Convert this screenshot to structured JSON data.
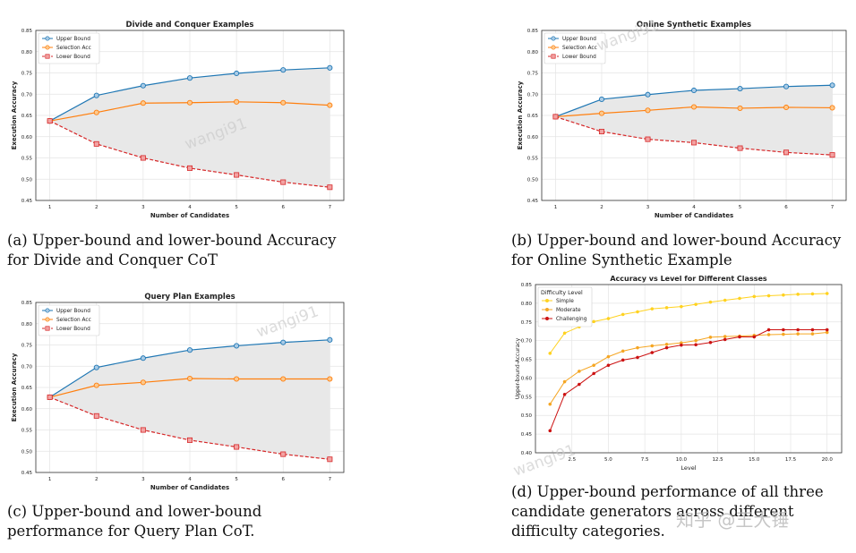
{
  "watermark": "wangi91",
  "brand_watermark": "知乎 @王大锤",
  "chart_data": [
    {
      "type": "line",
      "title": "Divide and Conquer Examples",
      "xlabel": "Number of Candidates",
      "ylabel": "Execution Accuracy",
      "x": [
        1,
        2,
        3,
        4,
        5,
        6,
        7
      ],
      "xticks": [
        "1",
        "2",
        "3",
        "4",
        "5",
        "6",
        "7"
      ],
      "ylim": [
        0.45,
        0.85
      ],
      "yticks": [
        "0.45",
        "0.50",
        "0.55",
        "0.60",
        "0.65",
        "0.70",
        "0.75",
        "0.80",
        "0.85"
      ],
      "grid": true,
      "legend": "top-left",
      "shaded_between": [
        "Upper Bound",
        "Lower Bound"
      ],
      "series": [
        {
          "name": "Upper Bound",
          "values": [
            0.637,
            0.697,
            0.72,
            0.738,
            0.749,
            0.757,
            0.762
          ],
          "color": "#1f77b4",
          "style": "solid",
          "marker": "circle"
        },
        {
          "name": "Selection Acc",
          "values": [
            0.637,
            0.657,
            0.679,
            0.68,
            0.682,
            0.68,
            0.674
          ],
          "color": "#ff7f0e",
          "style": "solid",
          "marker": "circle"
        },
        {
          "name": "Lower Bound",
          "values": [
            0.637,
            0.583,
            0.55,
            0.526,
            0.51,
            0.493,
            0.481
          ],
          "color": "#d62728",
          "style": "dashed",
          "marker": "square"
        }
      ],
      "caption": "(a) Upper-bound and lower-bound Accuracy for Divide and Conquer CoT"
    },
    {
      "type": "line",
      "title": "Online Synthetic Examples",
      "xlabel": "Number of Candidates",
      "ylabel": "Execution Accuracy",
      "x": [
        1,
        2,
        3,
        4,
        5,
        6,
        7
      ],
      "xticks": [
        "1",
        "2",
        "3",
        "4",
        "5",
        "6",
        "7"
      ],
      "ylim": [
        0.45,
        0.85
      ],
      "yticks": [
        "0.45",
        "0.50",
        "0.55",
        "0.60",
        "0.65",
        "0.70",
        "0.75",
        "0.80",
        "0.85"
      ],
      "grid": true,
      "legend": "top-left",
      "shaded_between": [
        "Upper Bound",
        "Lower Bound"
      ],
      "series": [
        {
          "name": "Upper Bound",
          "values": [
            0.647,
            0.688,
            0.699,
            0.709,
            0.713,
            0.718,
            0.721
          ],
          "color": "#1f77b4",
          "style": "solid",
          "marker": "circle"
        },
        {
          "name": "Selection Acc",
          "values": [
            0.647,
            0.655,
            0.662,
            0.67,
            0.667,
            0.669,
            0.668
          ],
          "color": "#ff7f0e",
          "style": "solid",
          "marker": "circle"
        },
        {
          "name": "Lower Bound",
          "values": [
            0.647,
            0.612,
            0.594,
            0.586,
            0.573,
            0.563,
            0.557
          ],
          "color": "#d62728",
          "style": "dashed",
          "marker": "square"
        }
      ],
      "caption": "(b) Upper-bound and lower-bound Accuracy for Online Synthetic Example"
    },
    {
      "type": "line",
      "title": "Query Plan Examples",
      "xlabel": "Number of Candidates",
      "ylabel": "Execution Accuracy",
      "x": [
        1,
        2,
        3,
        4,
        5,
        6,
        7
      ],
      "xticks": [
        "1",
        "2",
        "3",
        "4",
        "5",
        "6",
        "7"
      ],
      "ylim": [
        0.45,
        0.85
      ],
      "yticks": [
        "0.45",
        "0.50",
        "0.55",
        "0.60",
        "0.65",
        "0.70",
        "0.75",
        "0.80",
        "0.85"
      ],
      "grid": true,
      "legend": "top-left",
      "shaded_between": [
        "Upper Bound",
        "Lower Bound"
      ],
      "series": [
        {
          "name": "Upper Bound",
          "values": [
            0.627,
            0.697,
            0.719,
            0.738,
            0.748,
            0.756,
            0.762
          ],
          "color": "#1f77b4",
          "style": "solid",
          "marker": "circle"
        },
        {
          "name": "Selection Acc",
          "values": [
            0.627,
            0.655,
            0.662,
            0.671,
            0.67,
            0.67,
            0.67
          ],
          "color": "#ff7f0e",
          "style": "solid",
          "marker": "circle"
        },
        {
          "name": "Lower Bound",
          "values": [
            0.627,
            0.583,
            0.55,
            0.526,
            0.51,
            0.493,
            0.481
          ],
          "color": "#d62728",
          "style": "dashed",
          "marker": "square"
        }
      ],
      "caption": "(c) Upper-bound and lower-bound performance for Query Plan CoT."
    },
    {
      "type": "line",
      "title": "Accuracy vs Level for Different Classes",
      "xlabel": "Level",
      "ylabel": "Upper-bound-Accuracy",
      "x": [
        1,
        2,
        3,
        4,
        5,
        6,
        7,
        8,
        9,
        10,
        11,
        12,
        13,
        14,
        15,
        16,
        17,
        18,
        19,
        20
      ],
      "xlim": [
        0,
        21
      ],
      "xtick_values": [
        2.5,
        5,
        7.5,
        10,
        12.5,
        15,
        17.5,
        20
      ],
      "xticks": [
        "2.5",
        "5.0",
        "7.5",
        "10.0",
        "12.5",
        "15.0",
        "17.5",
        "20.0"
      ],
      "ylim": [
        0.4,
        0.85
      ],
      "yticks": [
        "0.40",
        "0.45",
        "0.50",
        "0.55",
        "0.60",
        "0.65",
        "0.70",
        "0.75",
        "0.80",
        "0.85"
      ],
      "grid": true,
      "legend_title": "Difficulty Level",
      "legend": "top-left",
      "series": [
        {
          "name": "Simple",
          "values": [
            0.666,
            0.72,
            0.737,
            0.751,
            0.759,
            0.77,
            0.777,
            0.785,
            0.788,
            0.791,
            0.797,
            0.803,
            0.808,
            0.813,
            0.818,
            0.82,
            0.822,
            0.824,
            0.825,
            0.826
          ],
          "color": "#ffd21f",
          "style": "solid",
          "marker": "circle"
        },
        {
          "name": "Moderate",
          "values": [
            0.53,
            0.59,
            0.618,
            0.634,
            0.657,
            0.672,
            0.681,
            0.686,
            0.69,
            0.694,
            0.7,
            0.709,
            0.711,
            0.712,
            0.714,
            0.716,
            0.717,
            0.718,
            0.718,
            0.722
          ],
          "color": "#f5a623",
          "style": "solid",
          "marker": "circle"
        },
        {
          "name": "Challenging",
          "values": [
            0.459,
            0.556,
            0.583,
            0.612,
            0.634,
            0.648,
            0.655,
            0.668,
            0.681,
            0.688,
            0.689,
            0.695,
            0.703,
            0.71,
            0.71,
            0.729,
            0.729,
            0.729,
            0.729,
            0.729
          ],
          "color": "#cc1111",
          "style": "solid",
          "marker": "circle"
        }
      ],
      "caption": "(d) Upper-bound performance of all three candidate generators across different difficulty categories."
    }
  ]
}
